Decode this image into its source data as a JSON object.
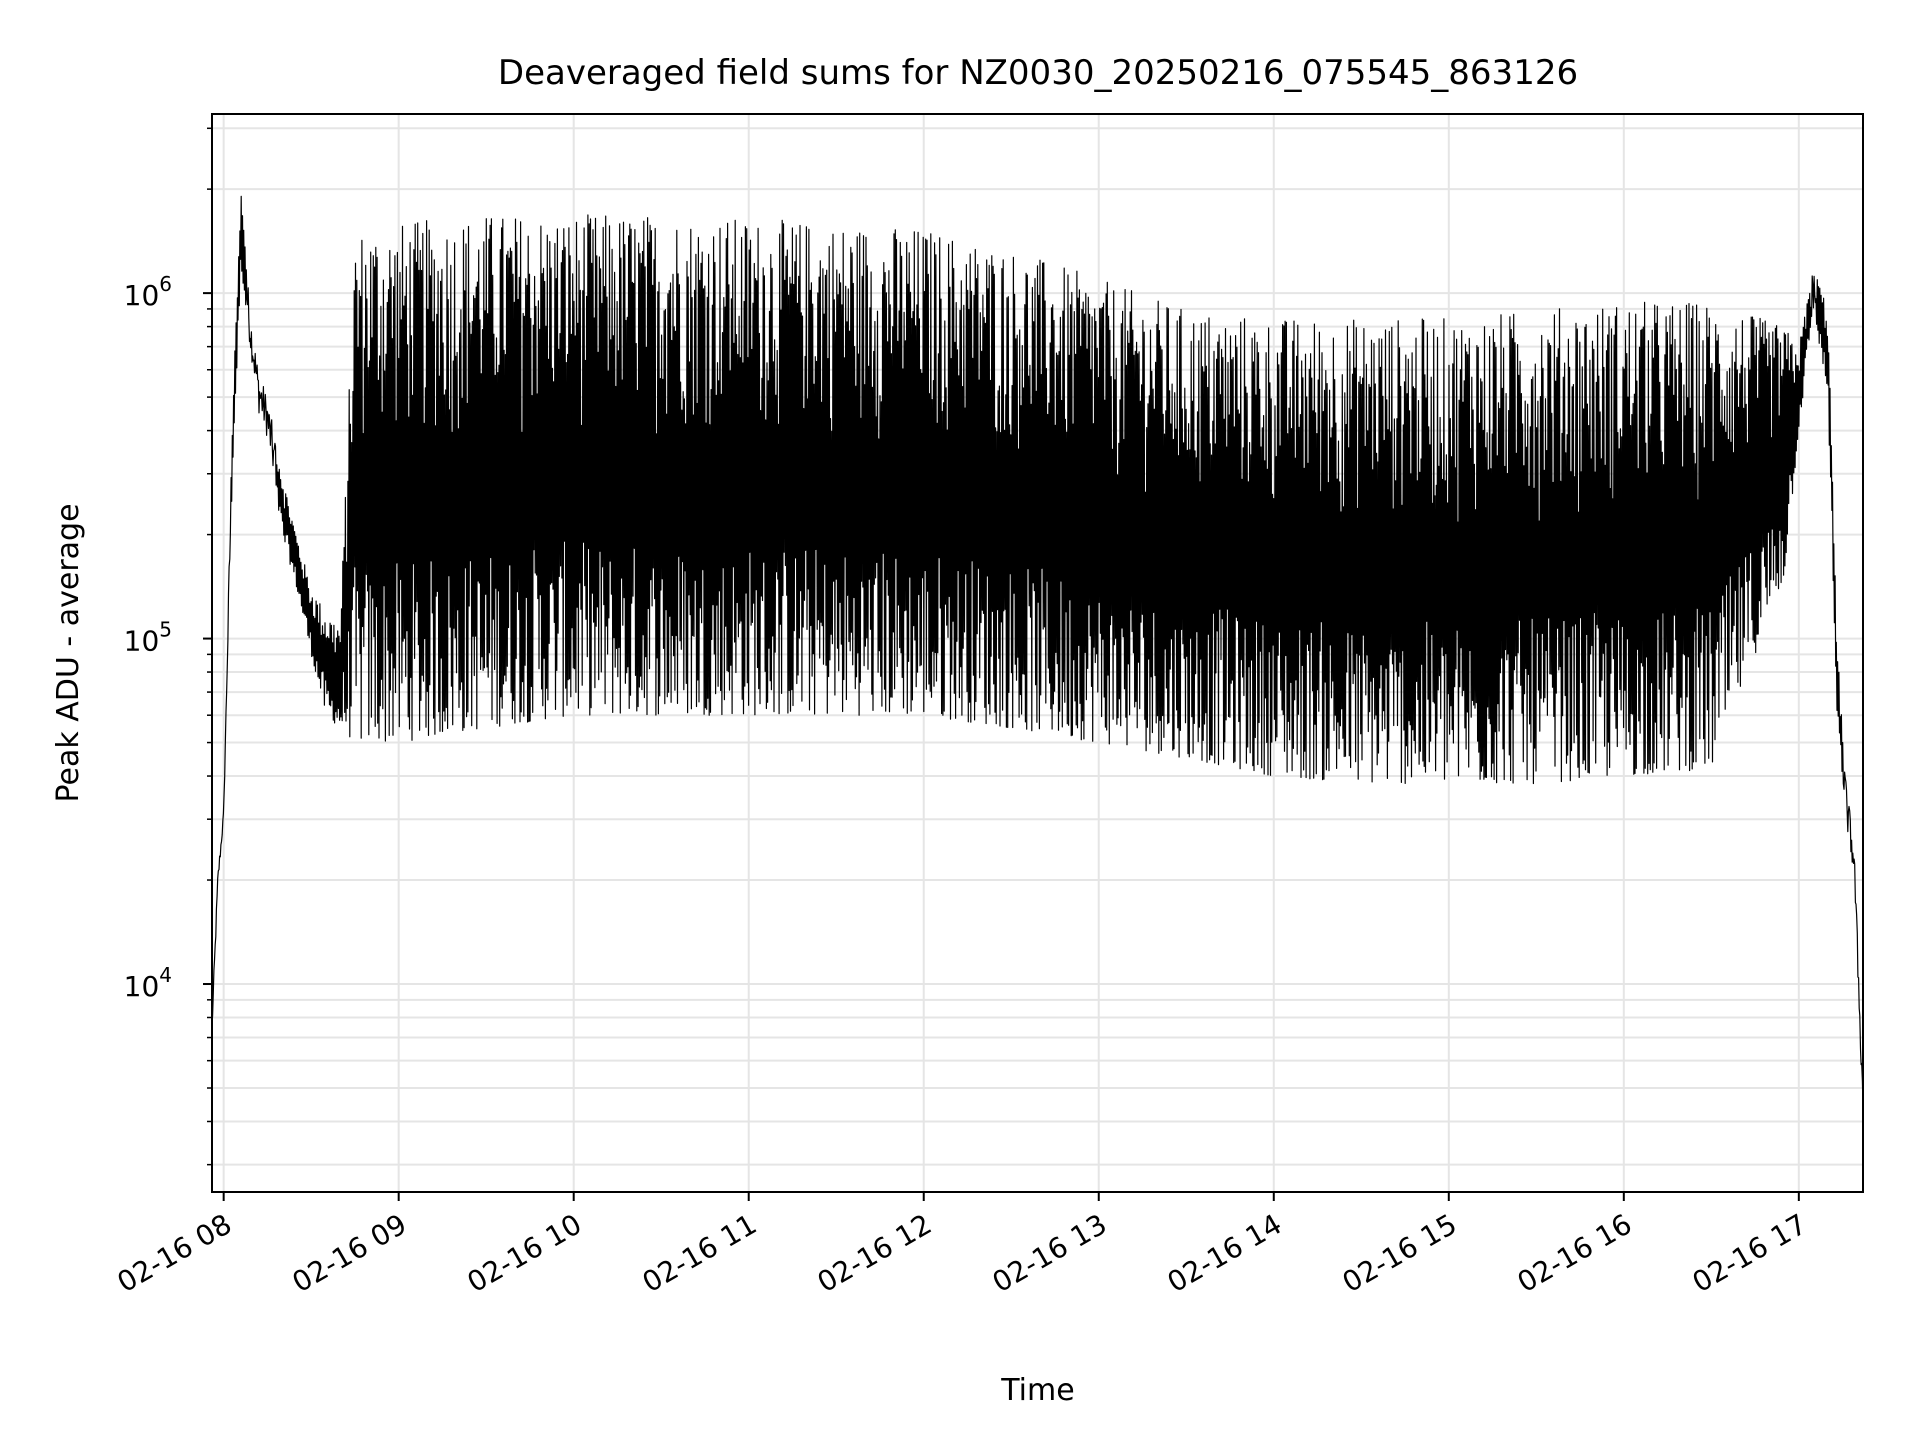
{
  "chart_data": {
    "type": "line",
    "title": "Deaveraged field sums for NZ0030_20250216_075545_863126",
    "xlabel": "Time",
    "ylabel": "Peak ADU - average",
    "x_tick_labels": [
      "02-16 08",
      "02-16 09",
      "02-16 10",
      "02-16 11",
      "02-16 12",
      "02-16 13",
      "02-16 14",
      "02-16 15",
      "02-16 16",
      "02-16 17"
    ],
    "y_tick_labels": [
      {
        "base": "10",
        "exp": "4",
        "value": 10000
      },
      {
        "base": "10",
        "exp": "5",
        "value": 100000
      },
      {
        "base": "10",
        "exp": "6",
        "value": 1000000
      }
    ],
    "yscale": "log",
    "xlim": [
      "2025-02-16 07:56",
      "2025-02-16 17:22"
    ],
    "ylim": [
      2500,
      3300000
    ],
    "grid": true,
    "line_color": "#000000",
    "grid_color": "#e5e5e5",
    "series": [
      {
        "x": [
          "2025-02-16 07:56",
          "2025-02-16 07:58",
          "2025-02-16 08:00",
          "2025-02-16 08:03",
          "2025-02-16 08:06",
          "2025-02-16 08:09",
          "2025-02-16 08:12",
          "2025-02-16 08:15",
          "2025-02-16 08:20",
          "2025-02-16 08:25",
          "2025-02-16 08:30",
          "2025-02-16 08:35",
          "2025-02-16 08:40",
          "2025-02-16 08:45",
          "2025-02-16 08:50",
          "2025-02-16 09:00",
          "2025-02-16 09:30",
          "2025-02-16 10:00",
          "2025-02-16 10:30",
          "2025-02-16 11:00",
          "2025-02-16 11:30",
          "2025-02-16 12:00",
          "2025-02-16 12:30",
          "2025-02-16 13:00",
          "2025-02-16 13:30",
          "2025-02-16 14:00",
          "2025-02-16 14:30",
          "2025-02-16 15:00",
          "2025-02-16 15:30",
          "2025-02-16 16:00",
          "2025-02-16 16:30",
          "2025-02-16 16:55",
          "2025-02-16 17:00",
          "2025-02-16 17:05",
          "2025-02-16 17:10",
          "2025-02-16 17:13",
          "2025-02-16 17:16",
          "2025-02-16 17:19",
          "2025-02-16 17:22"
        ],
        "lower": [
          7000,
          19000,
          30000,
          300000,
          1200000,
          700000,
          450000,
          380000,
          200000,
          140000,
          90000,
          60000,
          55000,
          50000,
          50000,
          50000,
          55000,
          60000,
          60000,
          60000,
          60000,
          60000,
          55000,
          50000,
          45000,
          40000,
          38000,
          38000,
          38000,
          40000,
          42000,
          150000,
          400000,
          900000,
          500000,
          60000,
          30000,
          20000,
          4000
        ],
        "upper": [
          8000,
          21000,
          32000,
          450000,
          2000000,
          900000,
          600000,
          500000,
          300000,
          200000,
          140000,
          120000,
          110000,
          1500000,
          1600000,
          1600000,
          1700000,
          1700000,
          1700000,
          1650000,
          1600000,
          1550000,
          1350000,
          1100000,
          900000,
          850000,
          850000,
          850000,
          900000,
          950000,
          950000,
          800000,
          700000,
          1200000,
          900000,
          100000,
          40000,
          25000,
          5000
        ]
      }
    ]
  }
}
